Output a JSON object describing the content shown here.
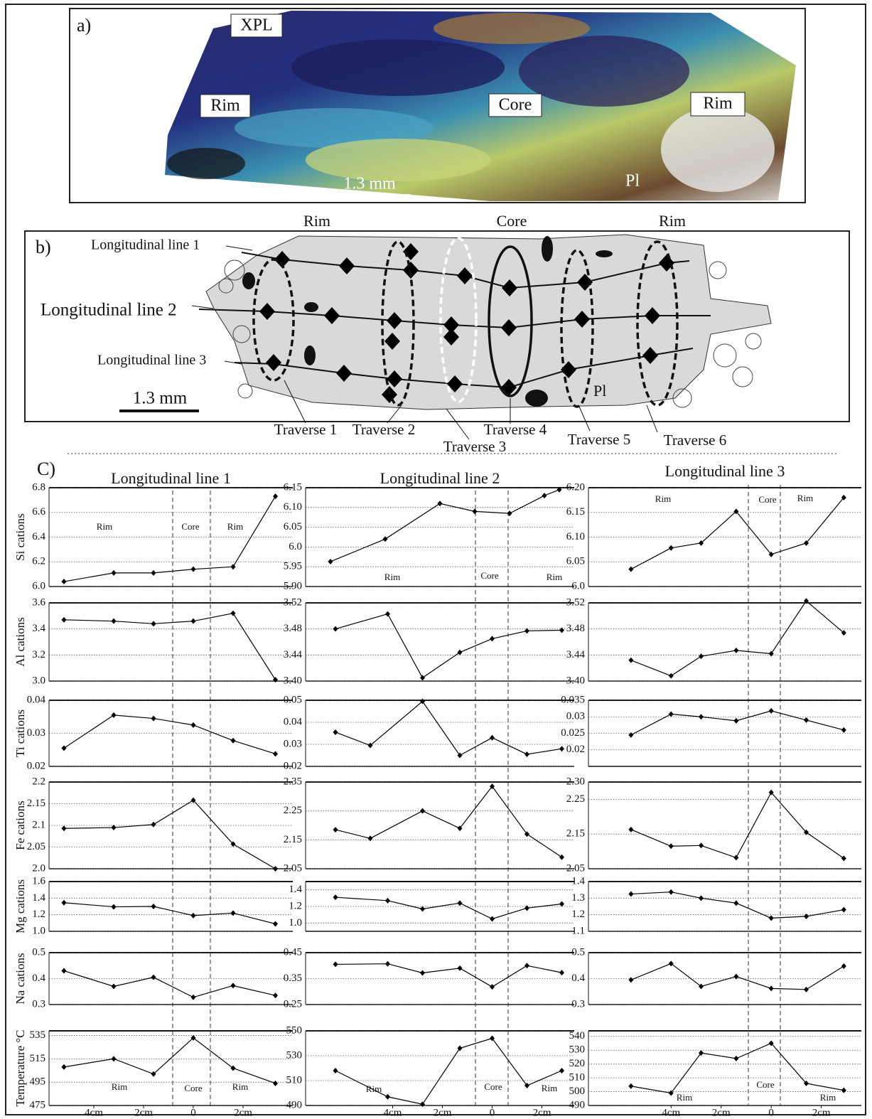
{
  "panel_a": {
    "label": "a)",
    "labels": [
      "XPL",
      "Rim",
      "Core",
      "Rim",
      "Pl"
    ],
    "scale": "1.3 mm"
  },
  "panel_b": {
    "label": "b)",
    "zones": [
      "Rim",
      "Core",
      "Rim"
    ],
    "lines": [
      "Longitudinal line 1",
      "Longitudinal line 2",
      "Longitudinal line 3"
    ],
    "scale": "1.3 mm",
    "mineral": "Pl",
    "traverses": [
      "Traverse 1",
      "Traverse 2",
      "Traverse 3",
      "Traverse 4",
      "Traverse 5",
      "Traverse 6"
    ]
  },
  "panel_c_label": "C)",
  "chart_data": [
    {
      "type": "line",
      "title": "Longitudinal line 1",
      "ylabel": "Si cations",
      "annotations": [
        "Rim",
        "Core",
        "Rim"
      ],
      "x": [
        -5.2,
        -3.2,
        -1.6,
        0,
        1.6,
        3.3
      ],
      "values": [
        6.04,
        6.11,
        6.11,
        6.14,
        6.16,
        6.73
      ],
      "xlim": [
        -5.8,
        4.0
      ],
      "ylim": [
        6.0,
        6.8
      ],
      "yticks": [
        {
          "value": 6,
          "label": "6.0"
        },
        6.2,
        6.4,
        6.6,
        6.8
      ],
      "grid": true,
      "color": "#000000"
    },
    {
      "type": "line",
      "title": "Longitudinal line 2",
      "annotations": [
        "Rim",
        "Core",
        "Rim"
      ],
      "x": [
        -6.5,
        -4.3,
        -2.1,
        -0.7,
        0.7,
        2.1,
        2.7
      ],
      "values": [
        5.963,
        6.02,
        6.11,
        6.09,
        6.085,
        6.13,
        6.145
      ],
      "xlim": [
        -7.5,
        3.3
      ],
      "ylim": [
        5.9,
        6.15
      ],
      "yticks": [
        {
          "value": 5.9,
          "label": "5.90"
        },
        5.95,
        {
          "value": 6,
          "label": "6.0"
        },
        6.05,
        {
          "value": 6.1,
          "label": "6.10"
        },
        6.15
      ],
      "grid": true,
      "color": "#000000"
    },
    {
      "type": "line",
      "title": "Longitudinal line 3",
      "annotations": [
        "Rim",
        "Core",
        "Rim"
      ],
      "x": [
        -5.6,
        -4.0,
        -2.8,
        -1.4,
        0,
        1.4,
        2.9
      ],
      "values": [
        6.035,
        6.078,
        6.088,
        6.152,
        6.065,
        6.088,
        6.18
      ],
      "xlim": [
        -7.3,
        3.6
      ],
      "ylim": [
        6.0,
        6.2
      ],
      "yticks": [
        {
          "value": 6,
          "label": "6.0"
        },
        6.05,
        {
          "value": 6.1,
          "label": "6.10"
        },
        6.15,
        {
          "value": 6.2,
          "label": "6.20"
        }
      ],
      "grid": true,
      "color": "#000000"
    },
    {
      "type": "line",
      "ylabel": "Al cations",
      "x": [
        -5.2,
        -3.2,
        -1.6,
        0,
        1.6,
        3.3
      ],
      "values": [
        3.47,
        3.46,
        3.44,
        3.46,
        3.52,
        3.01
      ],
      "xlim": [
        -5.8,
        4.0
      ],
      "ylim": [
        3.0,
        3.6
      ],
      "yticks": [
        {
          "value": 3,
          "label": "3.0"
        },
        3.2,
        3.4,
        3.6
      ],
      "grid": true,
      "color": "#000000"
    },
    {
      "type": "line",
      "x": [
        -6.3,
        -4.2,
        -2.8,
        -1.3,
        0,
        1.4,
        2.8
      ],
      "values": [
        3.48,
        3.503,
        3.405,
        3.444,
        3.465,
        3.477,
        3.478
      ],
      "xlim": [
        -7.5,
        3.3
      ],
      "ylim": [
        3.4,
        3.52
      ],
      "yticks": [
        {
          "value": 3.4,
          "label": "3.40"
        },
        3.44,
        3.48,
        3.52
      ],
      "grid": true,
      "color": "#000000"
    },
    {
      "type": "line",
      "x": [
        -5.6,
        -4.0,
        -2.8,
        -1.4,
        0,
        1.4,
        2.9
      ],
      "values": [
        3.432,
        3.408,
        3.438,
        3.447,
        3.442,
        3.523,
        3.474
      ],
      "xlim": [
        -7.3,
        3.6
      ],
      "ylim": [
        3.4,
        3.52
      ],
      "yticks": [
        {
          "value": 3.4,
          "label": "3.40"
        },
        3.44,
        3.48,
        3.52
      ],
      "grid": true,
      "color": "#000000"
    },
    {
      "type": "line",
      "ylabel": "Ti cations",
      "x": [
        -5.2,
        -3.2,
        -1.6,
        0,
        1.6,
        3.3
      ],
      "values": [
        0.0255,
        0.0355,
        0.0345,
        0.0325,
        0.0278,
        0.0238
      ],
      "xlim": [
        -5.8,
        4.0
      ],
      "ylim": [
        0.02,
        0.04
      ],
      "yticks": [
        0.02,
        0.03,
        0.04
      ],
      "grid": true,
      "color": "#000000"
    },
    {
      "type": "line",
      "x": [
        -6.3,
        -4.9,
        -2.8,
        -1.3,
        0,
        1.4,
        2.8
      ],
      "values": [
        0.0355,
        0.0295,
        0.0495,
        0.025,
        0.033,
        0.0255,
        0.028
      ],
      "xlim": [
        -7.5,
        3.3
      ],
      "ylim": [
        0.02,
        0.05
      ],
      "yticks": [
        0.02,
        0.03,
        0.04,
        0.05
      ],
      "grid": true,
      "color": "#000000"
    },
    {
      "type": "line",
      "x": [
        -5.6,
        -4.0,
        -2.8,
        -1.4,
        0,
        1.4,
        2.9
      ],
      "values": [
        0.0245,
        0.0308,
        0.03,
        0.0288,
        0.0318,
        0.029,
        0.026
      ],
      "xlim": [
        -7.3,
        3.6
      ],
      "ylim": [
        0.015,
        0.035
      ],
      "yticks": [
        0.02,
        0.025,
        0.03,
        0.035
      ],
      "grid": true,
      "color": "#000000"
    },
    {
      "type": "line",
      "ylabel": "Fe cations",
      "x": [
        -5.2,
        -3.2,
        -1.6,
        0,
        1.6,
        3.3
      ],
      "values": [
        2.093,
        2.095,
        2.102,
        2.158,
        2.057,
        2.0
      ],
      "xlim": [
        -5.8,
        4.0
      ],
      "ylim": [
        2.0,
        2.2
      ],
      "yticks": [
        {
          "value": 2,
          "label": "2.0"
        },
        2.05,
        2.1,
        2.15,
        2.2
      ],
      "grid": true,
      "color": "#000000"
    },
    {
      "type": "line",
      "x": [
        -6.3,
        -4.9,
        -2.8,
        -1.3,
        0,
        1.4,
        2.8
      ],
      "values": [
        2.185,
        2.155,
        2.25,
        2.19,
        2.335,
        2.17,
        2.09
      ],
      "xlim": [
        -7.5,
        3.3
      ],
      "ylim": [
        2.05,
        2.35
      ],
      "yticks": [
        2.05,
        2.15,
        2.25,
        2.35
      ],
      "grid": true,
      "color": "#000000"
    },
    {
      "type": "line",
      "x": [
        -5.6,
        -4.0,
        -2.8,
        -1.4,
        0,
        1.4,
        2.9
      ],
      "values": [
        2.163,
        2.115,
        2.117,
        2.082,
        2.27,
        2.155,
        2.08
      ],
      "xlim": [
        -7.3,
        3.6
      ],
      "ylim": [
        2.05,
        2.3
      ],
      "yticks": [
        2.05,
        2.15,
        2.25,
        {
          "value": 2.3,
          "label": "2.30"
        }
      ],
      "grid": true,
      "color": "#000000"
    },
    {
      "type": "line",
      "ylabel": "Mg cations",
      "x": [
        -5.2,
        -3.2,
        -1.6,
        0,
        1.6,
        3.3
      ],
      "values": [
        1.345,
        1.295,
        1.3,
        1.19,
        1.22,
        1.09
      ],
      "xlim": [
        -5.8,
        4.0
      ],
      "ylim": [
        1.0,
        1.6
      ],
      "yticks": [
        {
          "value": 1,
          "label": "1.0"
        },
        1.2,
        1.4,
        1.6
      ],
      "grid": true,
      "color": "#000000"
    },
    {
      "type": "line",
      "x": [
        -6.3,
        -4.2,
        -2.8,
        -1.3,
        0,
        1.4,
        2.8
      ],
      "values": [
        1.31,
        1.27,
        1.17,
        1.24,
        1.05,
        1.18,
        1.23
      ],
      "xlim": [
        -7.5,
        3.3
      ],
      "ylim": [
        0.9,
        1.5
      ],
      "yticks": [
        {
          "value": 1,
          "label": "1.0"
        },
        1.2,
        1.4
      ],
      "grid": true,
      "color": "#000000"
    },
    {
      "type": "line",
      "x": [
        -5.6,
        -4.0,
        -2.8,
        -1.4,
        0,
        1.4,
        2.9
      ],
      "values": [
        1.325,
        1.337,
        1.3,
        1.27,
        1.18,
        1.19,
        1.23
      ],
      "xlim": [
        -7.3,
        3.6
      ],
      "ylim": [
        1.1,
        1.4
      ],
      "yticks": [
        1.1,
        1.2,
        1.3,
        1.4
      ],
      "grid": true,
      "color": "#000000"
    },
    {
      "type": "line",
      "ylabel": "Na cations",
      "x": [
        -5.2,
        -3.2,
        -1.6,
        0,
        1.6,
        3.3
      ],
      "values": [
        0.43,
        0.37,
        0.405,
        0.328,
        0.373,
        0.335
      ],
      "xlim": [
        -5.8,
        4.0
      ],
      "ylim": [
        0.3,
        0.5
      ],
      "yticks": [
        0.3,
        0.4,
        0.5
      ],
      "grid": true,
      "color": "#000000"
    },
    {
      "type": "line",
      "x": [
        -6.3,
        -4.2,
        -2.8,
        -1.3,
        0,
        1.4,
        2.8
      ],
      "values": [
        0.405,
        0.407,
        0.372,
        0.39,
        0.318,
        0.4,
        0.373
      ],
      "xlim": [
        -7.5,
        3.3
      ],
      "ylim": [
        0.25,
        0.45
      ],
      "yticks": [
        0.25,
        0.35,
        0.45
      ],
      "grid": true,
      "color": "#000000"
    },
    {
      "type": "line",
      "x": [
        -5.6,
        -4.0,
        -2.8,
        -1.4,
        0,
        1.4,
        2.9
      ],
      "values": [
        0.395,
        0.458,
        0.37,
        0.408,
        0.362,
        0.358,
        0.448
      ],
      "xlim": [
        -7.3,
        3.6
      ],
      "ylim": [
        0.3,
        0.5
      ],
      "yticks": [
        0.3,
        0.4,
        0.5
      ],
      "grid": true,
      "color": "#000000"
    },
    {
      "type": "line",
      "ylabel": "Temperature °C",
      "annotations": [
        "Rim",
        "Core",
        "Rim"
      ],
      "x": [
        -5.2,
        -3.2,
        -1.6,
        0,
        1.6,
        3.3
      ],
      "values": [
        508,
        515,
        502,
        533,
        507,
        494
      ],
      "xlim": [
        -5.8,
        4.0
      ],
      "ylim": [
        475,
        539
      ],
      "yticks": [
        475,
        495,
        515,
        535
      ],
      "xticks": [
        {
          "value": -4,
          "label": "4cm"
        },
        {
          "value": -2,
          "label": "2cm"
        },
        0,
        {
          "value": 2,
          "label": "2cm"
        }
      ],
      "grid": true,
      "color": "#000000"
    },
    {
      "type": "line",
      "annotations": [
        "Rim",
        "Core",
        "Rim"
      ],
      "x": [
        -6.3,
        -4.2,
        -2.8,
        -1.3,
        0,
        1.4,
        2.8
      ],
      "values": [
        518,
        497,
        491,
        536,
        544,
        506,
        518
      ],
      "xlim": [
        -7.5,
        3.3
      ],
      "ylim": [
        490,
        550
      ],
      "yticks": [
        490,
        510,
        530,
        550
      ],
      "xticks": [
        {
          "value": -4,
          "label": "4cm"
        },
        {
          "value": -2,
          "label": "2cm"
        },
        0,
        {
          "value": 2,
          "label": "2cm"
        }
      ],
      "grid": true,
      "color": "#000000"
    },
    {
      "type": "line",
      "annotations": [
        "Rim",
        "Core",
        "Rim"
      ],
      "x": [
        -5.6,
        -4.0,
        -2.8,
        -1.4,
        0,
        1.4,
        2.9
      ],
      "values": [
        504,
        499,
        528,
        524,
        535,
        506,
        501
      ],
      "xlim": [
        -7.3,
        3.6
      ],
      "ylim": [
        490,
        544
      ],
      "yticks": [
        490,
        500,
        510,
        520,
        530,
        540
      ],
      "xticks": [
        {
          "value": -4,
          "label": "4cm"
        },
        {
          "value": -2,
          "label": "2cm"
        },
        0,
        {
          "value": 2,
          "label": "2cm"
        }
      ],
      "grid": true,
      "color": "#000000"
    }
  ]
}
